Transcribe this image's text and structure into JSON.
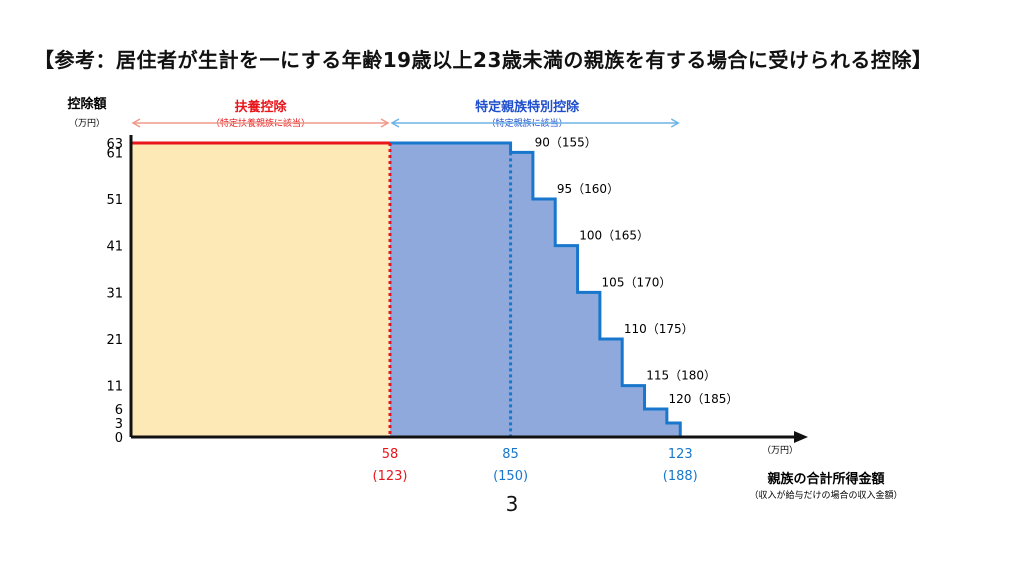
{
  "title": "【参考：居住者が生計を一にする年齢19歳以上23歳未満の親族を有する場合に受けられる控除】",
  "page_number": "3",
  "colors": {
    "fuyo_fill": "#fde9b5",
    "fuyo_line": "#e8161b",
    "tokutei_fill": "#8fa9dc",
    "tokutei_line": "#1877cc",
    "blue_text": "#1f4fcc",
    "blue_arrow": "#6fb3e6",
    "red_arrow": "#f09a8a",
    "axis": "#111111"
  },
  "chart_data": {
    "type": "area",
    "step": "post",
    "ylabel": "控除額",
    "ylabel_unit": "（万円）",
    "xlabel": "親族の合計所得金額",
    "xlabel_note": "（収入が給与だけの場合の収入金額）",
    "xlabel_unit": "（万円）",
    "xlim": [
      0,
      135
    ],
    "ylim": [
      0,
      63
    ],
    "yticks": [
      0,
      3,
      6,
      11,
      21,
      31,
      41,
      51,
      61,
      63
    ],
    "xticks": [
      {
        "value": 58,
        "label": "58",
        "sub": "(123)",
        "color": "red"
      },
      {
        "value": 85,
        "label": "85",
        "sub": "(150)",
        "color": "blue"
      },
      {
        "value": 123,
        "label": "123",
        "sub": "(188)",
        "color": "blue"
      }
    ],
    "series": [
      {
        "name": "扶養控除",
        "x": [
          0,
          58
        ],
        "y": [
          63,
          63
        ]
      },
      {
        "name": "特定親族特別控除",
        "x": [
          58,
          85,
          90,
          95,
          100,
          105,
          110,
          115,
          120,
          123
        ],
        "y": [
          63,
          61,
          51,
          41,
          31,
          21,
          11,
          6,
          3,
          0
        ]
      }
    ],
    "step_labels": [
      "90（155）",
      "95（160）",
      "100（165）",
      "105（170）",
      "110（175）",
      "115（180）",
      "120（185）"
    ],
    "step_label_x": [
      85,
      90,
      95,
      100,
      105,
      110,
      115
    ],
    "step_label_y": [
      61,
      51,
      41,
      31,
      21,
      11,
      6
    ],
    "ranges": [
      {
        "label": "扶養控除",
        "sub": "（特定扶養親族に該当）",
        "from": 0,
        "to": 58,
        "color": "red"
      },
      {
        "label": "特定親族特別控除",
        "sub": "（特定親族に該当）",
        "from": 58,
        "to": 123,
        "color": "blue"
      }
    ]
  }
}
